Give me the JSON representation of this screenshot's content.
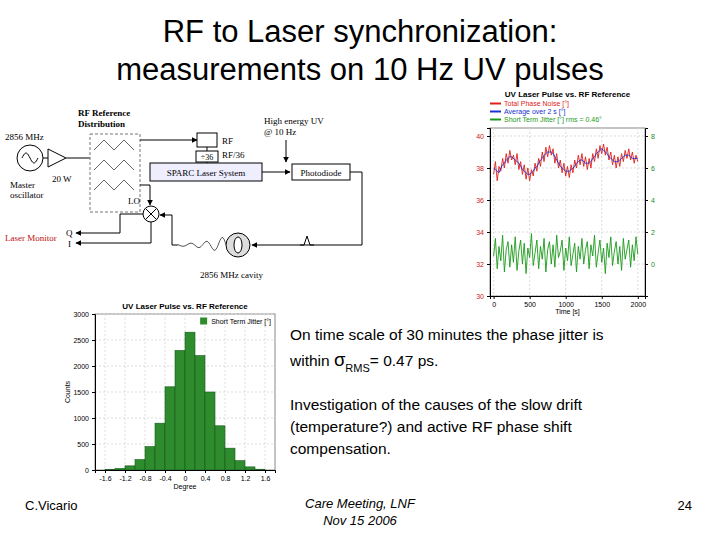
{
  "slide": {
    "title": [
      "RF to Laser synchronization:",
      "measurements on 10 Hz UV pulses"
    ],
    "paragraph_1": {
      "line_1": "On time scale of 30 minutes the phase jitter is",
      "line_2_start": "within ",
      "line_2_symbol": "σ",
      "line_2_sub": "RMS",
      "line_2_end": "= 0.47 ps."
    },
    "paragraph_2": [
      "Investigation of the causes of the slow drift",
      "(temperature?) and active RF phase shift",
      "compensation."
    ],
    "footer": {
      "author": "C.Vicario",
      "event": "Care Meeting, LNF",
      "date": "Nov 15 2006",
      "page": "24"
    }
  },
  "diagram": {
    "oscillator_frequency": "2856 MHz",
    "oscillator": [
      "Master",
      "oscillator"
    ],
    "distribution": [
      "RF Reference",
      "Distribution"
    ],
    "amplifier": "20 W",
    "rf": "RF",
    "divider": "÷36",
    "rf_divided": "RF/36",
    "laser": "SPARC Laser System",
    "photodiode": "Photodiode",
    "uv": [
      "High energy UV",
      "@ 10 Hz"
    ],
    "lo": "LO",
    "monitor": "Laser Monitor",
    "q": "Q",
    "i": "I",
    "cavity": "2856 MHz cavity"
  },
  "chart_data": [
    {
      "type": "line",
      "title": "UV Laser Pulse vs. RF Reference",
      "xlabel": "Time [s]",
      "x": [
        0,
        25,
        50,
        75,
        100,
        125,
        150,
        175,
        200,
        225,
        250,
        275,
        300,
        325,
        350,
        375,
        400,
        425,
        450,
        475,
        500,
        525,
        550,
        575,
        600,
        625,
        650,
        675,
        700,
        725,
        750,
        775,
        800,
        825,
        850,
        875,
        900,
        925,
        950,
        975,
        1000,
        1025,
        1050,
        1075,
        1100,
        1125,
        1150,
        1175,
        1200,
        1225,
        1250,
        1275,
        1300,
        1325,
        1350,
        1375,
        1400,
        1425,
        1450,
        1475,
        1500,
        1525,
        1550,
        1575,
        1600,
        1625,
        1650,
        1675,
        1700,
        1725,
        1750,
        1775,
        1800,
        1825,
        1850,
        1875,
        1900,
        1925,
        1950,
        1975,
        2000
      ],
      "xlim": [
        -50,
        2100
      ],
      "xticks": [
        0,
        500,
        1000,
        1500,
        2000
      ],
      "ylim": [
        30,
        40.5
      ],
      "yticks": [
        30,
        32,
        34,
        36,
        38,
        40
      ],
      "y2lim": [
        -2,
        8.5
      ],
      "y2ticks": [
        0,
        2,
        4,
        6,
        8
      ],
      "grid": true,
      "legend": "top",
      "series": [
        {
          "name": "Total Phase Noise [°]",
          "color": "#e0201c",
          "values": [
            37.6,
            38.4,
            37.2,
            38.1,
            37.8,
            38.6,
            38.0,
            38.9,
            38.3,
            39.1,
            38.5,
            38.8,
            38.2,
            38.9,
            37.9,
            38.4,
            37.6,
            38.2,
            37.3,
            38.0,
            37.2,
            37.9,
            37.5,
            38.3,
            37.8,
            38.6,
            38.1,
            39.0,
            38.4,
            39.3,
            38.7,
            39.4,
            38.8,
            39.2,
            38.3,
            38.9,
            38.0,
            38.5,
            37.7,
            38.3,
            37.5,
            38.1,
            37.4,
            38.2,
            37.7,
            38.5,
            38.0,
            38.8,
            38.2,
            38.9,
            38.1,
            38.7,
            37.9,
            38.6,
            38.0,
            38.9,
            38.4,
            39.2,
            38.6,
            39.4,
            38.9,
            39.5,
            38.8,
            39.3,
            38.5,
            39.0,
            38.2,
            38.8,
            38.0,
            38.7,
            38.1,
            38.9,
            38.4,
            39.1,
            38.6,
            39.2,
            38.5,
            39.0,
            38.3,
            38.8,
            38.4
          ]
        },
        {
          "name": "Average over 2 s [°]",
          "color": "#2030d0",
          "values": [
            38.0,
            37.9,
            37.8,
            37.7,
            38.0,
            38.2,
            38.3,
            38.5,
            38.6,
            38.7,
            38.7,
            38.6,
            38.5,
            38.4,
            38.3,
            38.1,
            37.9,
            37.8,
            37.7,
            37.6,
            37.6,
            37.7,
            37.8,
            38.0,
            38.1,
            38.3,
            38.5,
            38.6,
            38.8,
            38.9,
            39.0,
            39.0,
            39.0,
            38.9,
            38.7,
            38.5,
            38.3,
            38.1,
            38.0,
            37.9,
            37.8,
            37.8,
            37.8,
            37.9,
            38.0,
            38.1,
            38.3,
            38.4,
            38.5,
            38.5,
            38.4,
            38.3,
            38.3,
            38.3,
            38.4,
            38.6,
            38.7,
            38.9,
            39.0,
            39.1,
            39.2,
            39.1,
            39.0,
            38.9,
            38.7,
            38.6,
            38.5,
            38.4,
            38.4,
            38.4,
            38.5,
            38.6,
            38.7,
            38.8,
            38.8,
            38.8,
            38.7,
            38.6,
            38.6,
            38.6,
            38.6
          ]
        },
        {
          "name": "Short Term Jitter [°] rms = 0.46°",
          "color": "#1a9a1a",
          "axis": "y2",
          "values": [
            0.5,
            1.6,
            -0.3,
            1.1,
            0.2,
            1.8,
            -0.5,
            0.9,
            1.4,
            -0.2,
            1.2,
            0.1,
            1.7,
            -0.4,
            0.8,
            1.5,
            0.0,
            1.3,
            -0.6,
            1.0,
            0.4,
            1.9,
            -0.1,
            0.7,
            1.5,
            -0.3,
            1.1,
            0.3,
            1.6,
            -0.5,
            0.9,
            1.4,
            0.0,
            1.2,
            -0.2,
            1.8,
            0.4,
            0.8,
            1.5,
            -0.4,
            1.0,
            0.2,
            1.7,
            -0.1,
            0.6,
            1.3,
            -0.5,
            1.1,
            0.3,
            1.6,
            0.0,
            0.9,
            1.4,
            -0.3,
            1.2,
            0.5,
            1.8,
            -0.2,
            0.7,
            1.5,
            0.1,
            1.0,
            -0.6,
            1.3,
            0.4,
            1.7,
            -0.1,
            0.8,
            1.4,
            0.0,
            1.1,
            -0.4,
            1.6,
            0.3,
            0.9,
            1.5,
            -0.2,
            1.2,
            0.2,
            1.7,
            0.6
          ]
        }
      ]
    },
    {
      "type": "histogram",
      "title": "UV Laser Pulse vs. RF Reference",
      "xlabel": "Degree",
      "ylabel": "Counts",
      "bins": [
        -1.6,
        -1.4,
        -1.2,
        -1.0,
        -0.8,
        -0.6,
        -0.4,
        -0.2,
        0,
        0.2,
        0.4,
        0.6,
        0.8,
        1.0,
        1.2,
        1.4,
        1.6
      ],
      "xlim": [
        -1.8,
        1.8
      ],
      "xticks": [
        -1.6,
        -1.2,
        -0.8,
        -0.4,
        0,
        0.4,
        0.8,
        1.2,
        1.6
      ],
      "ylim": [
        0,
        3000
      ],
      "yticks": [
        0,
        500,
        1000,
        1500,
        2000,
        2500,
        3000
      ],
      "grid": true,
      "legend": "top-right",
      "series": [
        {
          "name": "Short Term Jitter [°]",
          "color": "#2e8b2e",
          "values": [
            10,
            30,
            80,
            200,
            450,
            900,
            1600,
            2300,
            2650,
            2200,
            1500,
            850,
            420,
            180,
            60,
            15
          ]
        }
      ]
    }
  ]
}
